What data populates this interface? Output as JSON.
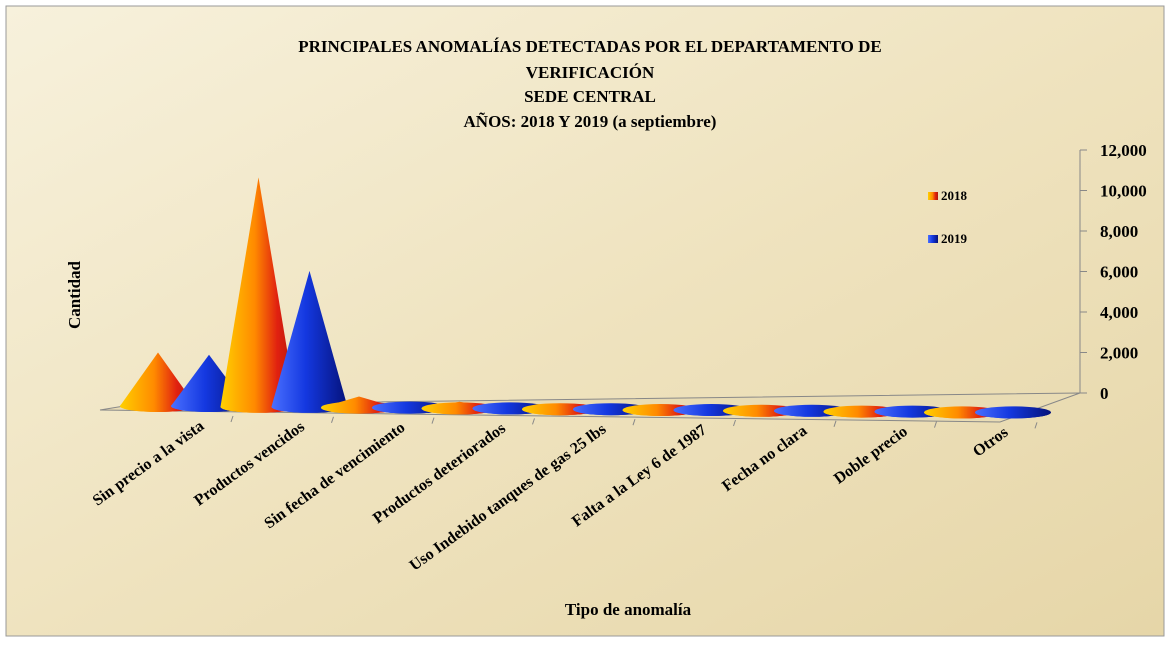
{
  "chart_data": {
    "type": "cone3d",
    "title": [
      "PRINCIPALES ANOMALÍAS DETECTADAS POR EL DEPARTAMENTO DE",
      "VERIFICACIÓN",
      "SEDE CENTRAL",
      "AÑOS: 2018 Y 2019  (a septiembre)"
    ],
    "x_label": "Tipo de anomalía",
    "y_label": "Cantidad",
    "categories": [
      "Sin precio a la vista",
      "Productos vencidos",
      "Sin fecha de vencimiento",
      "Productos deteriorados",
      "Uso Indebido tanques de gas 25 lbs",
      "Falta a la Ley 6 de 1987",
      "Fecha no clara",
      "Doble precio",
      "Otros"
    ],
    "series": [
      {
        "name": "2018",
        "color": "#f08a00",
        "values": [
          2400,
          10300,
          500,
          300,
          50,
          60,
          40,
          40,
          50
        ]
      },
      {
        "name": "2019",
        "color": "#1030c0",
        "values": [
          2300,
          6100,
          100,
          60,
          40,
          40,
          30,
          30,
          40
        ]
      }
    ],
    "ylim": [
      0,
      12000
    ],
    "yticks": [
      {
        "value": 0,
        "label": "0"
      },
      {
        "value": 2000,
        "label": "2,000"
      },
      {
        "value": 4000,
        "label": "4,000"
      },
      {
        "value": 6000,
        "label": "6,000"
      },
      {
        "value": 8000,
        "label": "8,000"
      },
      {
        "value": 10000,
        "label": "10,000"
      },
      {
        "value": 12000,
        "label": "12,000"
      }
    ],
    "legend": "upper right"
  }
}
